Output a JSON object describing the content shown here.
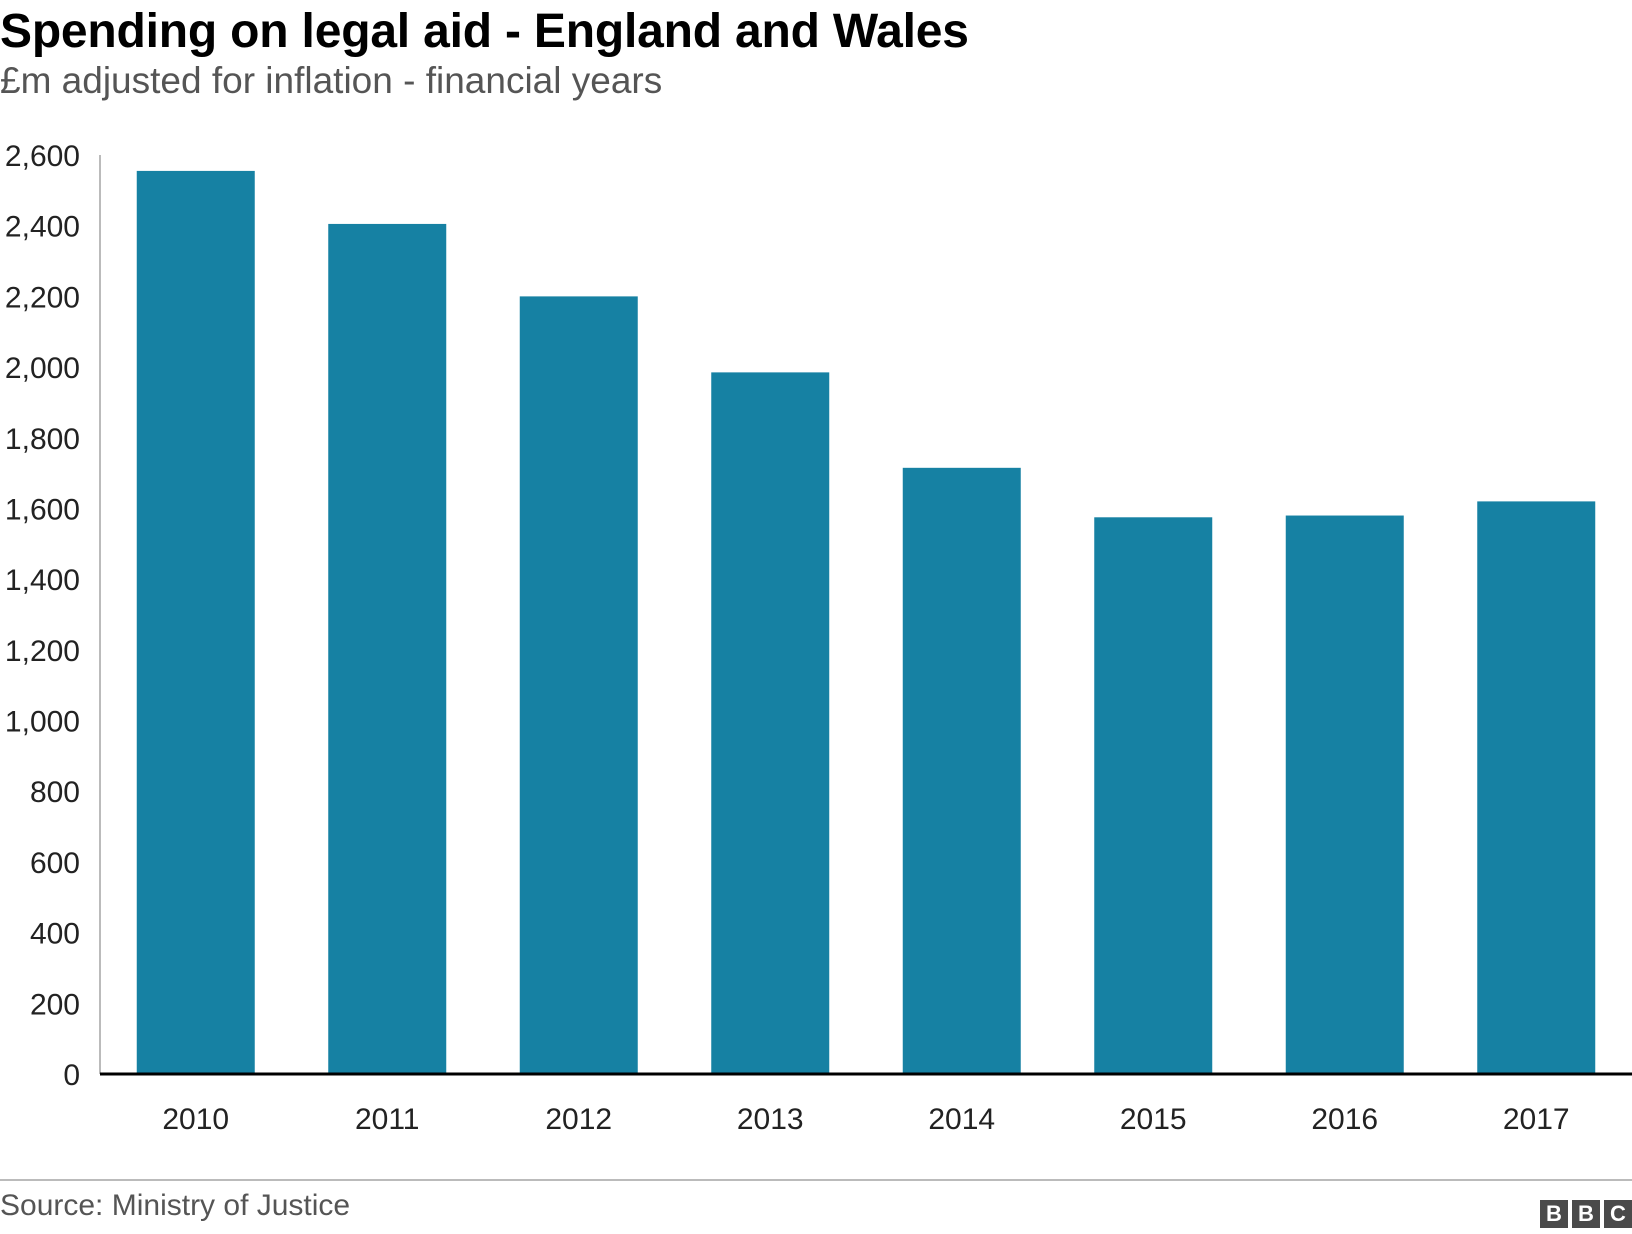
{
  "header": {
    "title": "Spending on legal aid - England and Wales",
    "subtitle": "£m adjusted for inflation - financial years"
  },
  "footer": {
    "source": "Source: Ministry of Justice",
    "logo_letters": [
      "B",
      "B",
      "C"
    ]
  },
  "colors": {
    "bar": "#1681a3",
    "axis": "#000000",
    "text": "#222222"
  },
  "chart_data": {
    "type": "bar",
    "title": "Spending on legal aid - England and Wales",
    "subtitle": "£m adjusted for inflation - financial years",
    "xlabel": "",
    "ylabel": "",
    "categories": [
      "2010",
      "2011",
      "2012",
      "2013",
      "2014",
      "2015",
      "2016",
      "2017"
    ],
    "values": [
      2555,
      2405,
      2200,
      1985,
      1715,
      1575,
      1580,
      1620
    ],
    "ylim": [
      0,
      2600
    ],
    "yticks": [
      0,
      200,
      400,
      600,
      800,
      1000,
      1200,
      1400,
      1600,
      1800,
      2000,
      2200,
      2400,
      2600
    ],
    "ytick_labels": [
      "0",
      "200",
      "400",
      "600",
      "800",
      "1,000",
      "1,200",
      "1,400",
      "1,600",
      "1,800",
      "2,000",
      "2,200",
      "2,400",
      "2,600"
    ],
    "grid": false,
    "legend": "none",
    "source": "Source: Ministry of Justice"
  }
}
